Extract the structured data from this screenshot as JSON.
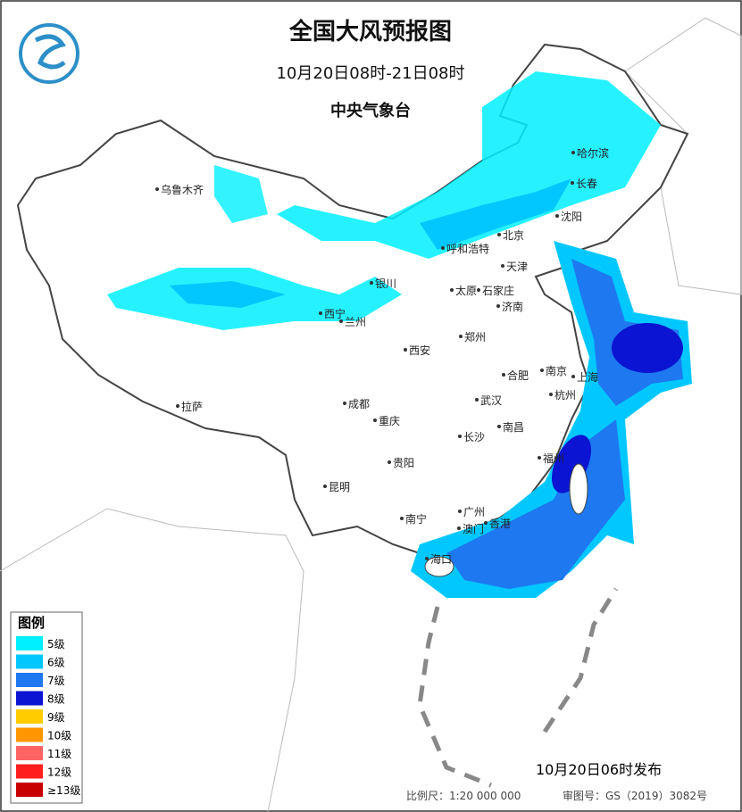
{
  "header": {
    "title": "全国大风预报图",
    "period": "10月20日08时-21日08时",
    "issuer": "中央气象台"
  },
  "cities": [
    "乌鲁木齐",
    "哈尔滨",
    "长春",
    "沈阳",
    "北京",
    "天津",
    "呼和浩特",
    "银川",
    "太原",
    "石家庄",
    "济南",
    "西宁",
    "兰州",
    "郑州",
    "西安",
    "南京",
    "合肥",
    "上海",
    "杭州",
    "成都",
    "武汉",
    "重庆",
    "拉萨",
    "长沙",
    "南昌",
    "福州",
    "贵阳",
    "昆明",
    "南宁",
    "广州",
    "香港",
    "澳门",
    "海口"
  ],
  "legend": {
    "title": "图例",
    "items": [
      {
        "label": "5级",
        "color": "#00f0ff"
      },
      {
        "label": "6级",
        "color": "#00c8ff"
      },
      {
        "label": "7级",
        "color": "#1e78f0"
      },
      {
        "label": "8级",
        "color": "#0a14d2"
      },
      {
        "label": "9级",
        "color": "#ffcc00"
      },
      {
        "label": "10级",
        "color": "#ff9600"
      },
      {
        "label": "11级",
        "color": "#ff6464"
      },
      {
        "label": "12级",
        "color": "#ff1e1e"
      },
      {
        "label": "≥13级",
        "color": "#c80000"
      }
    ]
  },
  "footer": {
    "issued": "10月20日06时发布",
    "scale": "比例尺：1:20 000 000",
    "map_number": "审图号：GS（2019）3082号"
  }
}
